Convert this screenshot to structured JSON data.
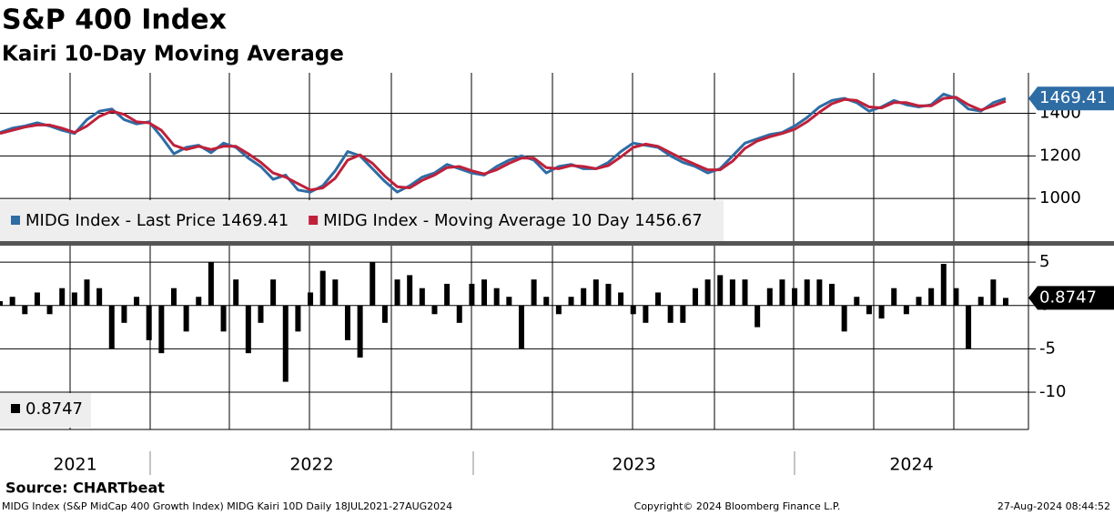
{
  "chart_data": [
    {
      "type": "line",
      "title": "S&P 400 Index",
      "subtitle": "Kairi 10-Day Moving Average",
      "ylim": [
        800,
        1590
      ],
      "yticks": [
        1000,
        1200,
        1400
      ],
      "grid": true,
      "series": [
        {
          "name": "MIDG Index - Last Price 1469.41",
          "color": "#2e6ca4",
          "values": [
            1310,
            1330,
            1340,
            1355,
            1340,
            1320,
            1305,
            1370,
            1410,
            1420,
            1370,
            1350,
            1360,
            1290,
            1210,
            1240,
            1250,
            1215,
            1260,
            1240,
            1190,
            1150,
            1090,
            1110,
            1040,
            1030,
            1060,
            1130,
            1220,
            1200,
            1140,
            1080,
            1030,
            1060,
            1100,
            1120,
            1160,
            1140,
            1120,
            1110,
            1150,
            1180,
            1200,
            1180,
            1120,
            1150,
            1160,
            1140,
            1140,
            1170,
            1220,
            1260,
            1250,
            1240,
            1200,
            1170,
            1150,
            1120,
            1140,
            1200,
            1260,
            1280,
            1300,
            1310,
            1340,
            1380,
            1430,
            1460,
            1470,
            1450,
            1410,
            1430,
            1460,
            1440,
            1430,
            1440,
            1490,
            1470,
            1420,
            1410,
            1450,
            1469.41
          ]
        },
        {
          "name": "MIDG Index - Moving Average 10 Day 1456.67",
          "color": "#c0203a",
          "values": [
            1305,
            1320,
            1335,
            1345,
            1345,
            1330,
            1310,
            1340,
            1385,
            1410,
            1395,
            1360,
            1355,
            1320,
            1250,
            1230,
            1245,
            1230,
            1245,
            1245,
            1210,
            1170,
            1120,
            1100,
            1070,
            1040,
            1050,
            1095,
            1180,
            1205,
            1165,
            1105,
            1055,
            1050,
            1085,
            1110,
            1145,
            1150,
            1130,
            1115,
            1135,
            1165,
            1190,
            1190,
            1145,
            1140,
            1155,
            1150,
            1140,
            1155,
            1195,
            1240,
            1255,
            1245,
            1215,
            1185,
            1160,
            1135,
            1135,
            1175,
            1235,
            1270,
            1290,
            1305,
            1325,
            1360,
            1405,
            1445,
            1465,
            1460,
            1430,
            1425,
            1450,
            1450,
            1435,
            1435,
            1470,
            1475,
            1440,
            1415,
            1435,
            1456.67
          ]
        }
      ]
    },
    {
      "type": "bar",
      "ylim": [
        -14.3,
        6.9
      ],
      "yticks": [
        5,
        0,
        -5,
        -10
      ],
      "grid": true,
      "year_labels": [
        "2021",
        "2022",
        "2023",
        "2024"
      ],
      "series": [
        {
          "name": "0.8747",
          "color": "#000000",
          "values": [
            0.5,
            1,
            -1,
            1.5,
            -1,
            2,
            1.5,
            3,
            2,
            -5,
            -2,
            1,
            -4,
            -5.5,
            2,
            -3,
            1,
            5,
            -3,
            3,
            -5.5,
            -2,
            3,
            -8.8,
            -3,
            1.5,
            4,
            3,
            -4,
            -6,
            5,
            -2,
            3,
            3.5,
            2,
            -1,
            2.5,
            -2,
            2.5,
            3,
            2,
            1,
            -5,
            3,
            1,
            -1,
            1,
            2,
            3,
            2.5,
            1.5,
            -1,
            -2,
            1.5,
            -2,
            -2,
            2,
            3,
            3.5,
            3,
            3,
            -2.5,
            2,
            3,
            2,
            3,
            3,
            2.5,
            -3,
            1,
            -1,
            -1.5,
            2,
            -1,
            1,
            2,
            4.8,
            2,
            -5,
            1,
            3,
            0.8747
          ]
        }
      ],
      "source": "Source: CHARTbeat",
      "footer_left": "MIDG Index (S&P MidCap 400 Growth Index) MIDG Kairi 10D  Daily 18JUL2021-27AUG2024",
      "footer_center": "Copyright© 2024 Bloomberg Finance L.P.",
      "footer_right": "27-Aug-2024 08:44:52"
    }
  ]
}
